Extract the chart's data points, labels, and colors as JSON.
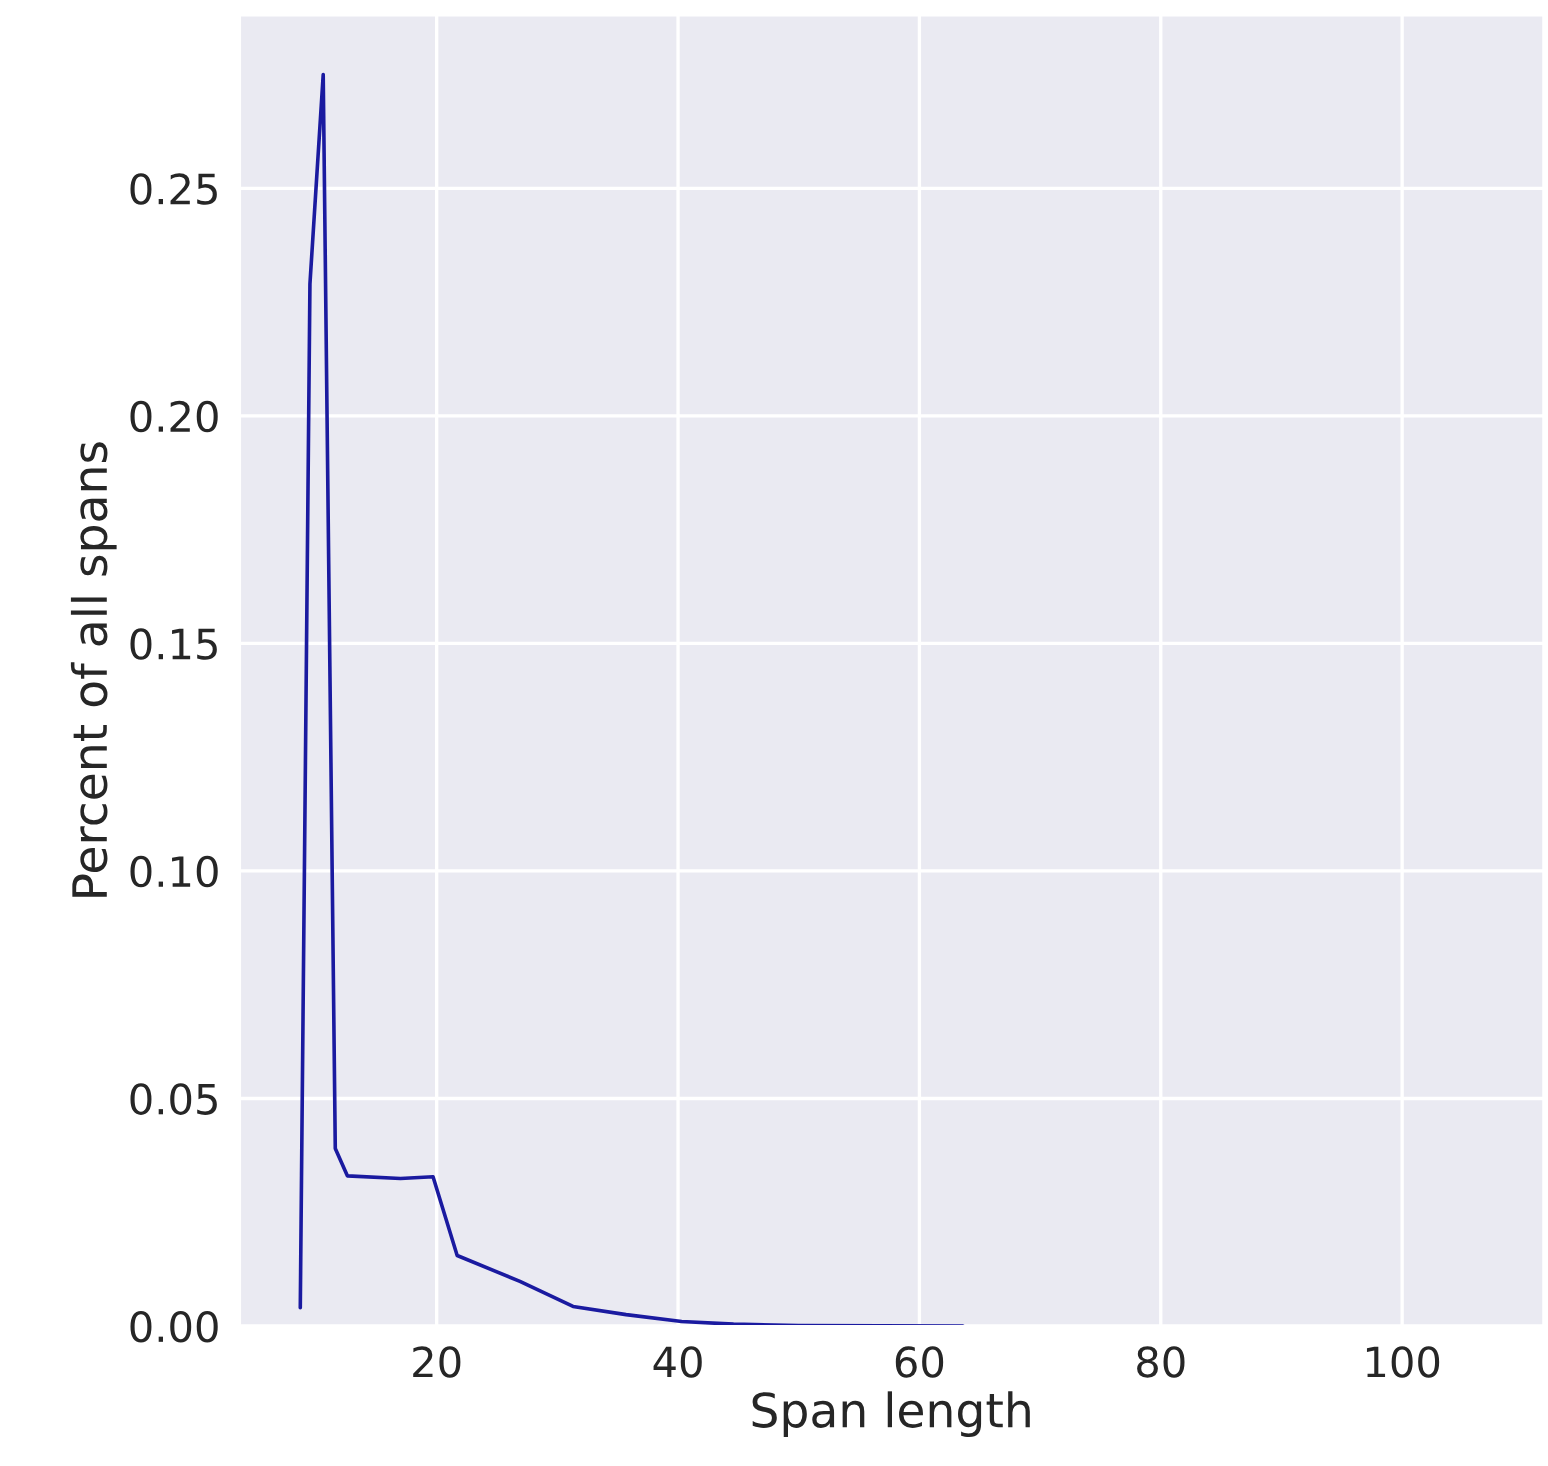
{
  "chart_data": {
    "type": "line",
    "xlabel": "Span length",
    "ylabel": "Percent of all spans",
    "series": [
      {
        "color": "#1a1aa0",
        "x": [
          8.7,
          9.5,
          10.6,
          11.6,
          12.6,
          17,
          19.7,
          21.7,
          26.9,
          31.3,
          35.7,
          40.3,
          44.6,
          50,
          63.6
        ],
        "values": [
          0.004,
          0.229,
          0.275,
          0.039,
          0.033,
          0.0324,
          0.0328,
          0.0155,
          0.0098,
          0.0043,
          0.0025,
          0.001,
          0.0004,
          0.0001,
          0.0
        ]
      }
    ],
    "xlim": [
      3.7,
      111.7
    ],
    "ylim": [
      0,
      0.288
    ],
    "xticks": [
      20,
      40,
      60,
      80,
      100
    ],
    "yticks": [
      {
        "value": 0,
        "label": "0.00"
      },
      {
        "value": 0.05,
        "label": "0.05"
      },
      {
        "value": 0.1,
        "label": "0.10"
      },
      {
        "value": 0.15,
        "label": "0.15"
      },
      {
        "value": 0.2,
        "label": "0.20"
      },
      {
        "value": 0.25,
        "label": "0.25"
      }
    ],
    "grid": true,
    "legend": false
  }
}
